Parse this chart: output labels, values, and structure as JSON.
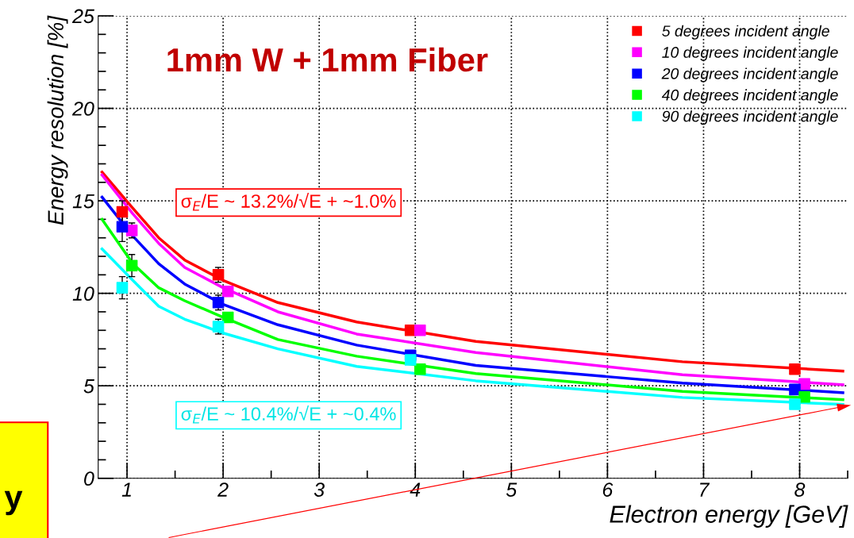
{
  "chart_data": {
    "type": "scatter",
    "title": "1mm W + 1mm Fiber",
    "xlabel": "Electron energy [GeV]",
    "ylabel": "Energy resolution [%]",
    "xlim": [
      0.7,
      8.5
    ],
    "ylim": [
      0,
      25
    ],
    "xticks": [
      1,
      2,
      3,
      4,
      5,
      6,
      7,
      8
    ],
    "yticks": [
      0,
      5,
      10,
      15,
      20,
      25
    ],
    "grid": true,
    "legend": "top right",
    "marker": "square",
    "series": [
      {
        "name": "5 degrees incident angle",
        "color": "#ff0000",
        "x": [
          0.95,
          1.95,
          3.95,
          7.95
        ],
        "values": [
          14.4,
          11.0,
          8.0,
          5.9
        ],
        "errors": [
          0.6,
          0.4,
          null,
          null
        ]
      },
      {
        "name": "10 degrees incident angle",
        "color": "#ff00ff",
        "x": [
          1.05,
          2.05,
          4.05,
          8.05
        ],
        "values": [
          13.4,
          10.1,
          8.0,
          5.1
        ],
        "errors": [
          0.4,
          null,
          null,
          null
        ]
      },
      {
        "name": "20 degrees incident angle",
        "color": "#0000ff",
        "x": [
          0.95,
          1.95,
          3.95,
          7.95
        ],
        "values": [
          13.6,
          9.5,
          6.65,
          4.8
        ],
        "errors": [
          0.8,
          0.4,
          null,
          null
        ]
      },
      {
        "name": "40 degrees incident angle",
        "color": "#00ff00",
        "x": [
          1.05,
          2.05,
          4.05,
          8.05
        ],
        "values": [
          11.5,
          8.7,
          5.9,
          4.4
        ],
        "errors": [
          0.6,
          null,
          null,
          null
        ]
      },
      {
        "name": "90 degrees incident angle",
        "color": "#00ffff",
        "x": [
          0.95,
          1.95,
          3.95,
          7.95
        ],
        "values": [
          10.3,
          8.2,
          6.4,
          4.0
        ],
        "errors": [
          0.6,
          0.4,
          null,
          null
        ]
      },
      {
        "type": "line",
        "marker": "none",
        "color": "#ff0000",
        "x": [
          0.74,
          1.06,
          1.33,
          1.6,
          2.0,
          2.57,
          3.39,
          4.63,
          6.78,
          8.45
        ],
        "values": [
          16.55,
          14.6,
          13.0,
          11.8,
          10.7,
          9.5,
          8.45,
          7.4,
          6.3,
          5.8
        ]
      },
      {
        "type": "line",
        "marker": "none",
        "color": "#ff00ff",
        "x": [
          0.74,
          1.06,
          1.33,
          1.6,
          2.0,
          2.57,
          3.39,
          4.63,
          6.78,
          8.45
        ],
        "values": [
          16.4,
          14.3,
          12.7,
          11.4,
          10.3,
          9.0,
          7.8,
          6.8,
          5.6,
          5.06
        ]
      },
      {
        "type": "line",
        "marker": "none",
        "color": "#0000ff",
        "x": [
          0.74,
          1.06,
          1.33,
          1.6,
          2.0,
          2.57,
          3.39,
          4.63,
          6.78,
          8.45
        ],
        "values": [
          15.2,
          13.1,
          11.6,
          10.5,
          9.4,
          8.3,
          7.2,
          6.1,
          5.15,
          4.63
        ]
      },
      {
        "type": "line",
        "marker": "none",
        "color": "#00ff00",
        "x": [
          0.74,
          1.06,
          1.33,
          1.6,
          2.0,
          2.57,
          3.39,
          4.63,
          6.78,
          8.45
        ],
        "values": [
          14.0,
          11.6,
          10.3,
          9.6,
          8.7,
          7.5,
          6.6,
          5.66,
          4.7,
          4.25
        ]
      },
      {
        "type": "line",
        "marker": "none",
        "color": "#00ffff",
        "x": [
          0.74,
          1.06,
          1.33,
          1.6,
          2.0,
          2.57,
          3.39,
          4.63,
          6.78,
          8.45
        ],
        "values": [
          12.4,
          10.7,
          9.3,
          8.6,
          7.85,
          7.0,
          6.05,
          5.27,
          4.37,
          3.99
        ]
      }
    ],
    "annotations": [
      "σ$_{E}$/E ~ 13.2%/√E + ~1.0%",
      "σ$_{E}$/E ~ 10.4%/√E + ~0.4%",
      "y"
    ]
  }
}
